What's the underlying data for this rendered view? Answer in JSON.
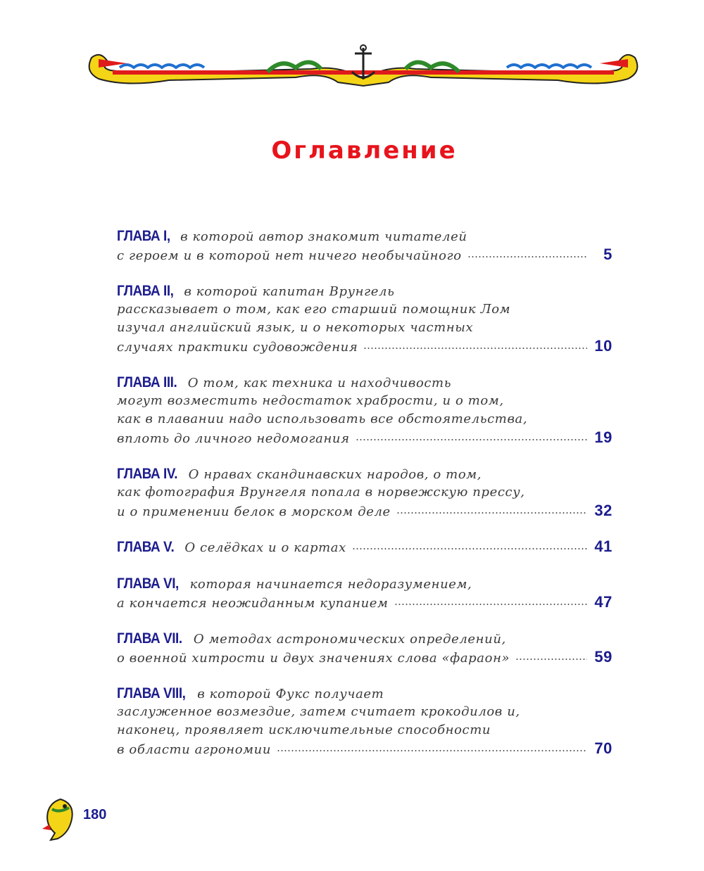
{
  "title": "Оглавление",
  "entries": [
    {
      "label": "ГЛАВА I,",
      "lines": [
        "в которой автор знакомит читателей",
        "с героем и в которой нет ничего необычайного"
      ],
      "page": "5"
    },
    {
      "label": "ГЛАВА II,",
      "lines": [
        "в которой капитан Врунгель",
        "рассказывает о том, как его старший помощник Лом",
        "изучал английский язык, и о некоторых частных",
        "случаях практики судовождения"
      ],
      "page": "10"
    },
    {
      "label": "ГЛАВА III.",
      "lines": [
        "О том, как техника и находчивость",
        "могут возместить недостаток храбрости, и о том,",
        "как в плавании надо использовать все обстоятельства,",
        "вплоть до личного недомогания"
      ],
      "page": "19"
    },
    {
      "label": "ГЛАВА IV.",
      "lines": [
        "О нравах скандинавских народов, о том,",
        "как фотография Врунгеля попала в норвежскую прессу,",
        "и о применении белок в морском деле"
      ],
      "page": "32"
    },
    {
      "label": "ГЛАВА V.",
      "lines": [
        "О селёдках и о картах"
      ],
      "page": "41"
    },
    {
      "label": "ГЛАВА VI,",
      "lines": [
        "которая начинается недоразумением,",
        "а кончается неожиданным купанием"
      ],
      "page": "47"
    },
    {
      "label": "ГЛАВА VII.",
      "lines": [
        "О методах астрономических определений,",
        "о военной хитрости и двух значениях слова «фараон»"
      ],
      "page": "59"
    },
    {
      "label": "ГЛАВА VIII,",
      "lines": [
        "в которой Фукс получает",
        "заслуженное возмездие, затем считает крокодилов и,",
        "наконец, проявляет исключительные способности",
        "в области агрономии"
      ],
      "page": "70"
    }
  ],
  "footer": {
    "page_number": "180"
  },
  "colors": {
    "title": "#e8141c",
    "label": "#1c1c8e",
    "text": "#3a3a3a"
  },
  "icons": {
    "header": "nautical-ornament-anchor-fish",
    "footer": "fish-icon"
  }
}
